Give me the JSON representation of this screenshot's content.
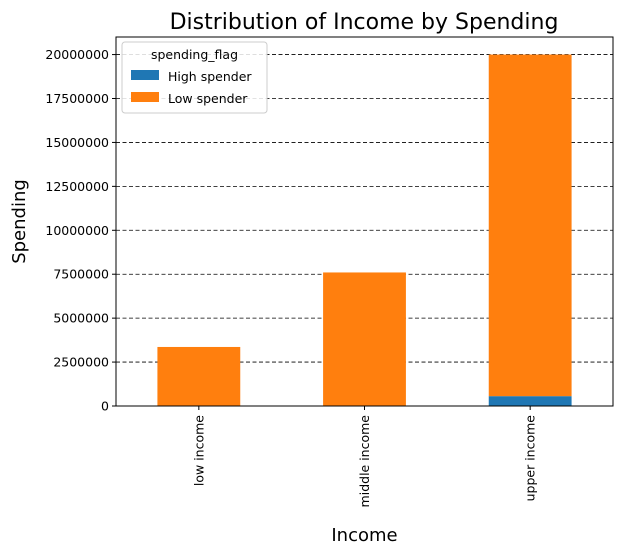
{
  "chart_data": {
    "type": "bar",
    "stacked": true,
    "title": "Distribution of Income by Spending",
    "xlabel": "Income",
    "ylabel": "Spending",
    "categories": [
      "low income",
      "middle income",
      "upper income"
    ],
    "series": [
      {
        "name": "High spender",
        "color": "#1f77b4",
        "values": [
          0,
          0,
          560000
        ]
      },
      {
        "name": "Low spender",
        "color": "#ff7f0e",
        "values": [
          3360000,
          7600000,
          19440000
        ]
      }
    ],
    "ylim": [
      0,
      21000000
    ],
    "yticks": [
      0,
      2500000,
      5000000,
      7500000,
      10000000,
      12500000,
      15000000,
      17500000,
      20000000
    ],
    "ytick_labels": [
      "0",
      "2500000",
      "5000000",
      "7500000",
      "10000000",
      "12500000",
      "15000000",
      "17500000",
      "20000000"
    ],
    "grid": "y-dashed",
    "legend": {
      "title": "spending_flag",
      "position": "top-left"
    }
  }
}
